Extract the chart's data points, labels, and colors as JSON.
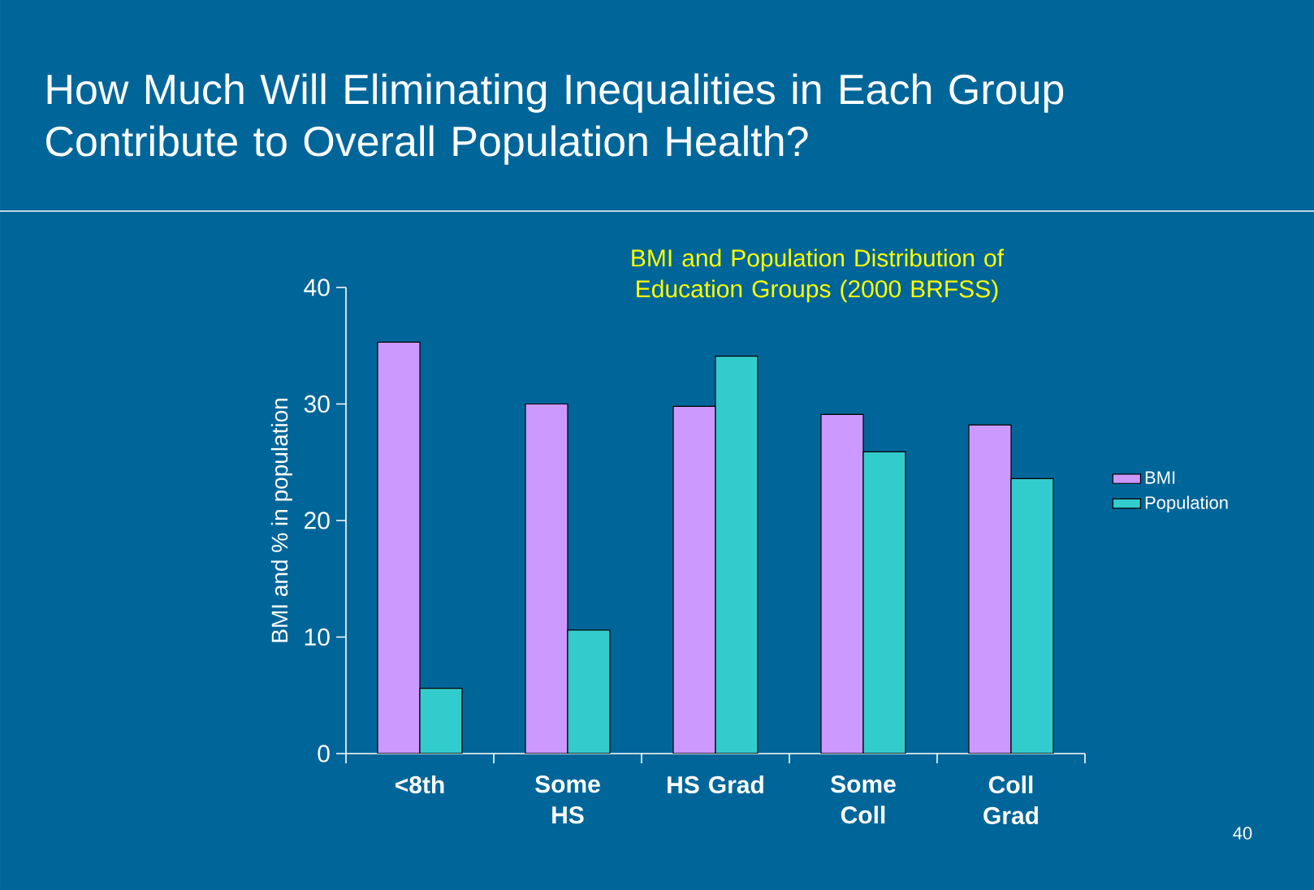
{
  "chart_data": {
    "type": "bar",
    "title": "How Much Will Eliminating Inequalities in Each Group Contribute to Overall Population Health?",
    "subtitle": "BMI and Population Distribution of Education Groups (2000 BRFSS)",
    "ylabel": "BMI and % in population",
    "categories": [
      "<8th",
      "Some HS",
      "HS Grad",
      "Some Coll",
      "Coll Grad"
    ],
    "series": [
      {
        "name": "BMI",
        "color": "#cc99ff",
        "values": [
          35.3,
          30.0,
          29.8,
          29.1,
          28.2
        ]
      },
      {
        "name": "Population",
        "color": "#33cccc",
        "values": [
          5.6,
          10.6,
          34.1,
          25.9,
          23.6
        ]
      }
    ],
    "ylim": [
      0,
      40
    ],
    "yticks": [
      0,
      10,
      20,
      30,
      40
    ],
    "legend": "right",
    "annotations": [
      "40"
    ]
  }
}
